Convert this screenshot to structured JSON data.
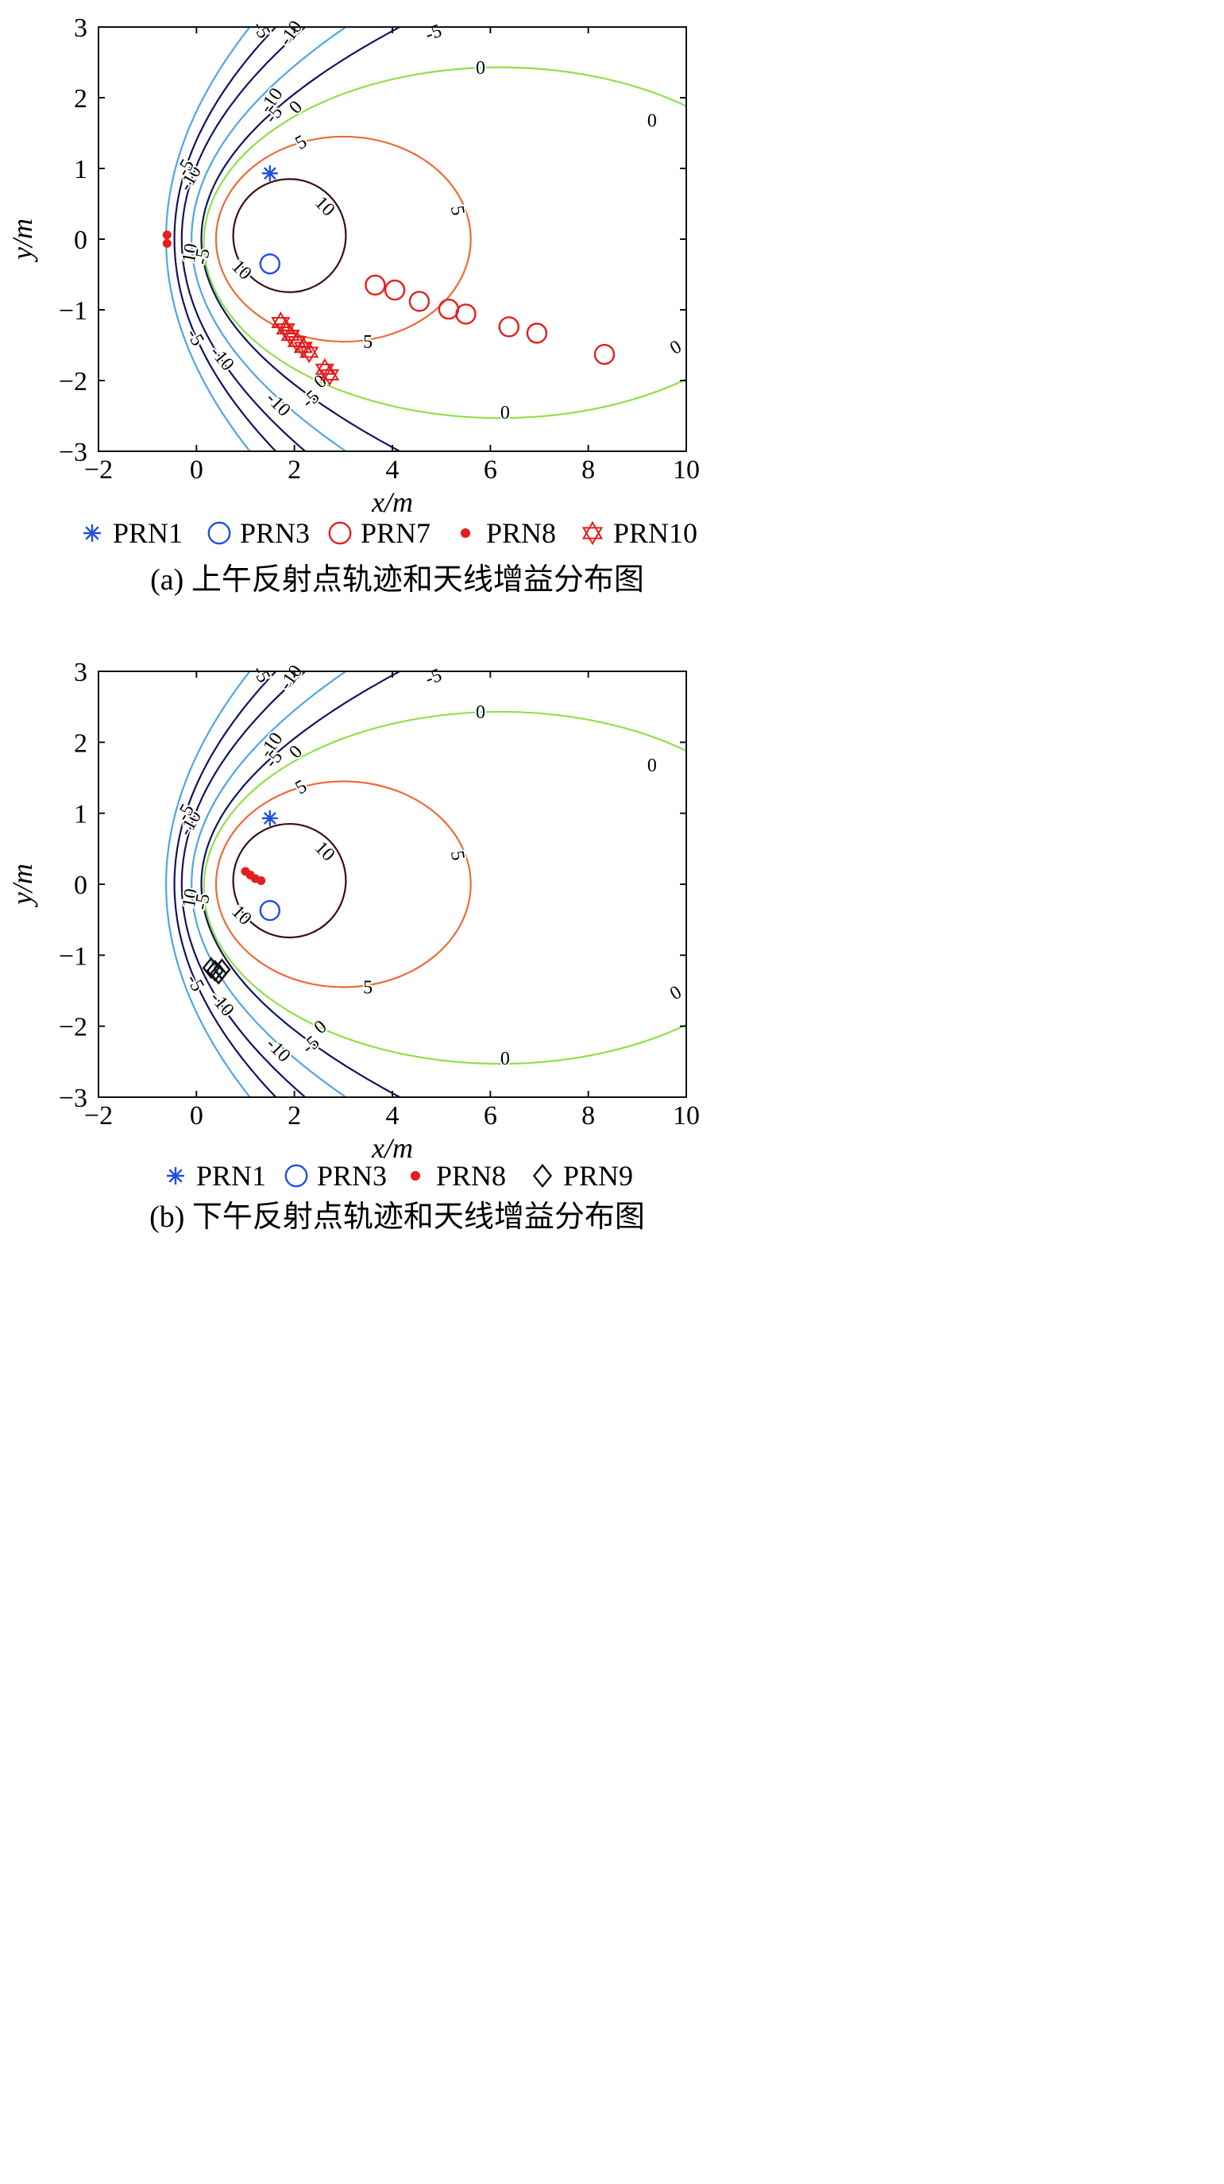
{
  "chart_data": [
    {
      "type": "scatter",
      "caption": "(a) 上午反射点轨迹和天线增益分布图",
      "xlabel": "x/m",
      "ylabel": "y/m",
      "xlim": [
        -2,
        10
      ],
      "ylim": [
        -3,
        3
      ],
      "xticks": [
        "−2",
        "0",
        "2",
        "4",
        "6",
        "8",
        "10"
      ],
      "yticks": [
        "−3",
        "−2",
        "−1",
        "0",
        "1",
        "2",
        "3"
      ],
      "xtick_values": [
        -2,
        0,
        2,
        4,
        6,
        8,
        10
      ],
      "ytick_values": [
        -3,
        -2,
        -1,
        0,
        1,
        2,
        3
      ],
      "contour_levels": [
        {
          "label": "10",
          "color": "#3b0d0d"
        },
        {
          "label": "5",
          "color": "#ee6a35"
        },
        {
          "label": "0",
          "color": "#8fe04a"
        },
        {
          "label": "-5",
          "color": "#4ea6e6"
        },
        {
          "label": "-10",
          "color": "#13135e"
        }
      ],
      "series": [
        {
          "name": "PRN1",
          "marker": "asterisk",
          "color": "#1f4fe0",
          "points": [
            [
              1.5,
              0.93
            ]
          ]
        },
        {
          "name": "PRN3",
          "marker": "circle",
          "color": "#1f4fe0",
          "points": [
            [
              1.5,
              -0.35
            ]
          ]
        },
        {
          "name": "PRN7",
          "marker": "circle",
          "color": "#e41e1e",
          "points": [
            [
              3.65,
              -0.65
            ],
            [
              4.05,
              -0.72
            ],
            [
              4.55,
              -0.88
            ],
            [
              5.15,
              -0.99
            ],
            [
              5.5,
              -1.06
            ],
            [
              6.38,
              -1.24
            ],
            [
              6.95,
              -1.33
            ],
            [
              8.33,
              -1.63
            ]
          ]
        },
        {
          "name": "PRN8",
          "marker": "dot",
          "color": "#e41e1e",
          "points": [
            [
              -0.6,
              0.06
            ],
            [
              -0.6,
              -0.06
            ]
          ]
        },
        {
          "name": "PRN10",
          "marker": "hexagram",
          "color": "#e41e1e",
          "points": [
            [
              1.72,
              -1.18
            ],
            [
              1.82,
              -1.27
            ],
            [
              1.92,
              -1.36
            ],
            [
              2.05,
              -1.45
            ],
            [
              2.18,
              -1.53
            ],
            [
              2.3,
              -1.6
            ],
            [
              2.62,
              -1.84
            ],
            [
              2.72,
              -1.92
            ]
          ]
        }
      ]
    },
    {
      "type": "scatter",
      "caption": "(b) 下午反射点轨迹和天线增益分布图",
      "xlabel": "x/m",
      "ylabel": "y/m",
      "xlim": [
        -2,
        10
      ],
      "ylim": [
        -3,
        3
      ],
      "xticks": [
        "−2",
        "0",
        "2",
        "4",
        "6",
        "8",
        "10"
      ],
      "yticks": [
        "−3",
        "−2",
        "−1",
        "0",
        "1",
        "2",
        "3"
      ],
      "xtick_values": [
        -2,
        0,
        2,
        4,
        6,
        8,
        10
      ],
      "ytick_values": [
        -3,
        -2,
        -1,
        0,
        1,
        2,
        3
      ],
      "contour_levels": [
        {
          "label": "10",
          "color": "#3b0d0d"
        },
        {
          "label": "5",
          "color": "#ee6a35"
        },
        {
          "label": "0",
          "color": "#8fe04a"
        },
        {
          "label": "-5",
          "color": "#4ea6e6"
        },
        {
          "label": "-10",
          "color": "#13135e"
        }
      ],
      "series": [
        {
          "name": "PRN1",
          "marker": "asterisk",
          "color": "#1f4fe0",
          "points": [
            [
              1.5,
              0.93
            ]
          ]
        },
        {
          "name": "PRN3",
          "marker": "circle",
          "color": "#1f4fe0",
          "points": [
            [
              1.5,
              -0.37
            ]
          ]
        },
        {
          "name": "PRN8",
          "marker": "dot",
          "color": "#e41e1e",
          "points": [
            [
              1.0,
              0.18
            ],
            [
              1.1,
              0.13
            ],
            [
              1.2,
              0.08
            ],
            [
              1.32,
              0.05
            ]
          ]
        },
        {
          "name": "PRN9",
          "marker": "diamond",
          "color": "#111111",
          "points": [
            [
              0.3,
              -1.18
            ],
            [
              0.38,
              -1.22
            ],
            [
              0.45,
              -1.26
            ],
            [
              0.52,
              -1.2
            ]
          ]
        }
      ]
    }
  ]
}
